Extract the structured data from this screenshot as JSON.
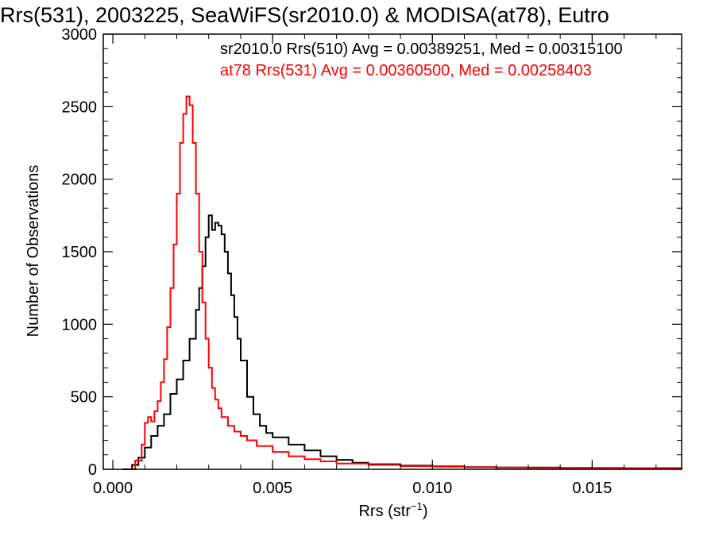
{
  "chart_data": {
    "type": "line",
    "title": "Rrs(531), 2003225, SeaWiFS(sr2010.0) & MODISA(at78), Eutro",
    "xlabel_main": "Rrs (str",
    "xlabel_sup": "−1",
    "xlabel_close": ")",
    "ylabel": "Number of Observations",
    "xlim": [
      -0.0003,
      0.0178
    ],
    "ylim": [
      0,
      3000
    ],
    "x_ticks": [
      0.0,
      0.005,
      0.01,
      0.015
    ],
    "x_tick_labels": [
      "0.000",
      "0.005",
      "0.010",
      "0.015"
    ],
    "y_ticks": [
      0,
      500,
      1000,
      1500,
      2000,
      2500,
      3000
    ],
    "y_tick_labels": [
      "0",
      "500",
      "1000",
      "1500",
      "2000",
      "2500",
      "3000"
    ],
    "annotations": [
      {
        "text": "sr2010.0 Rrs(510) Avg = 0.00389251, Med = 0.00315100",
        "color": "#000000"
      },
      {
        "text": "at78 Rrs(531) Avg = 0.00360500, Med = 0.00258403",
        "color": "#ff0000"
      }
    ],
    "series": [
      {
        "color": "#000000",
        "x": [
          0.0003,
          0.0006,
          0.0008,
          0.001,
          0.0012,
          0.0014,
          0.0016,
          0.0018,
          0.002,
          0.0022,
          0.0024,
          0.0026,
          0.0027,
          0.0028,
          0.0029,
          0.003,
          0.0031,
          0.0032,
          0.0033,
          0.0034,
          0.0035,
          0.0036,
          0.0037,
          0.0038,
          0.0039,
          0.004,
          0.0042,
          0.0044,
          0.0046,
          0.0048,
          0.005,
          0.0055,
          0.006,
          0.0065,
          0.007,
          0.0075,
          0.008,
          0.009,
          0.01,
          0.011,
          0.012,
          0.013,
          0.014,
          0.015,
          0.016,
          0.017,
          0.0178
        ],
        "y": [
          0,
          30,
          80,
          150,
          230,
          300,
          380,
          520,
          620,
          750,
          900,
          1100,
          1250,
          1400,
          1600,
          1750,
          1650,
          1700,
          1680,
          1620,
          1500,
          1350,
          1200,
          1050,
          900,
          750,
          500,
          380,
          300,
          250,
          220,
          170,
          130,
          90,
          65,
          45,
          35,
          25,
          20,
          15,
          12,
          12,
          10,
          10,
          8,
          8,
          6
        ]
      },
      {
        "color": "#ff0000",
        "x": [
          0.0005,
          0.0007,
          0.0009,
          0.001,
          0.0011,
          0.0012,
          0.0013,
          0.0014,
          0.0015,
          0.0016,
          0.0017,
          0.0018,
          0.0019,
          0.002,
          0.0021,
          0.0022,
          0.0023,
          0.0024,
          0.0025,
          0.0026,
          0.0027,
          0.0028,
          0.0029,
          0.003,
          0.0031,
          0.0032,
          0.0033,
          0.0034,
          0.0036,
          0.0038,
          0.004,
          0.0042,
          0.0045,
          0.005,
          0.0055,
          0.006,
          0.0065,
          0.007,
          0.008,
          0.009,
          0.01,
          0.011,
          0.012,
          0.013,
          0.014,
          0.015,
          0.016,
          0.017,
          0.0178
        ],
        "y": [
          0,
          60,
          170,
          320,
          360,
          330,
          400,
          470,
          600,
          760,
          980,
          1250,
          1550,
          1900,
          2250,
          2450,
          2570,
          2510,
          2250,
          1900,
          1500,
          1150,
          900,
          700,
          560,
          480,
          420,
          360,
          300,
          260,
          230,
          200,
          160,
          120,
          90,
          70,
          55,
          40,
          30,
          22,
          18,
          14,
          12,
          10,
          10,
          8,
          8,
          6,
          5
        ]
      }
    ]
  }
}
